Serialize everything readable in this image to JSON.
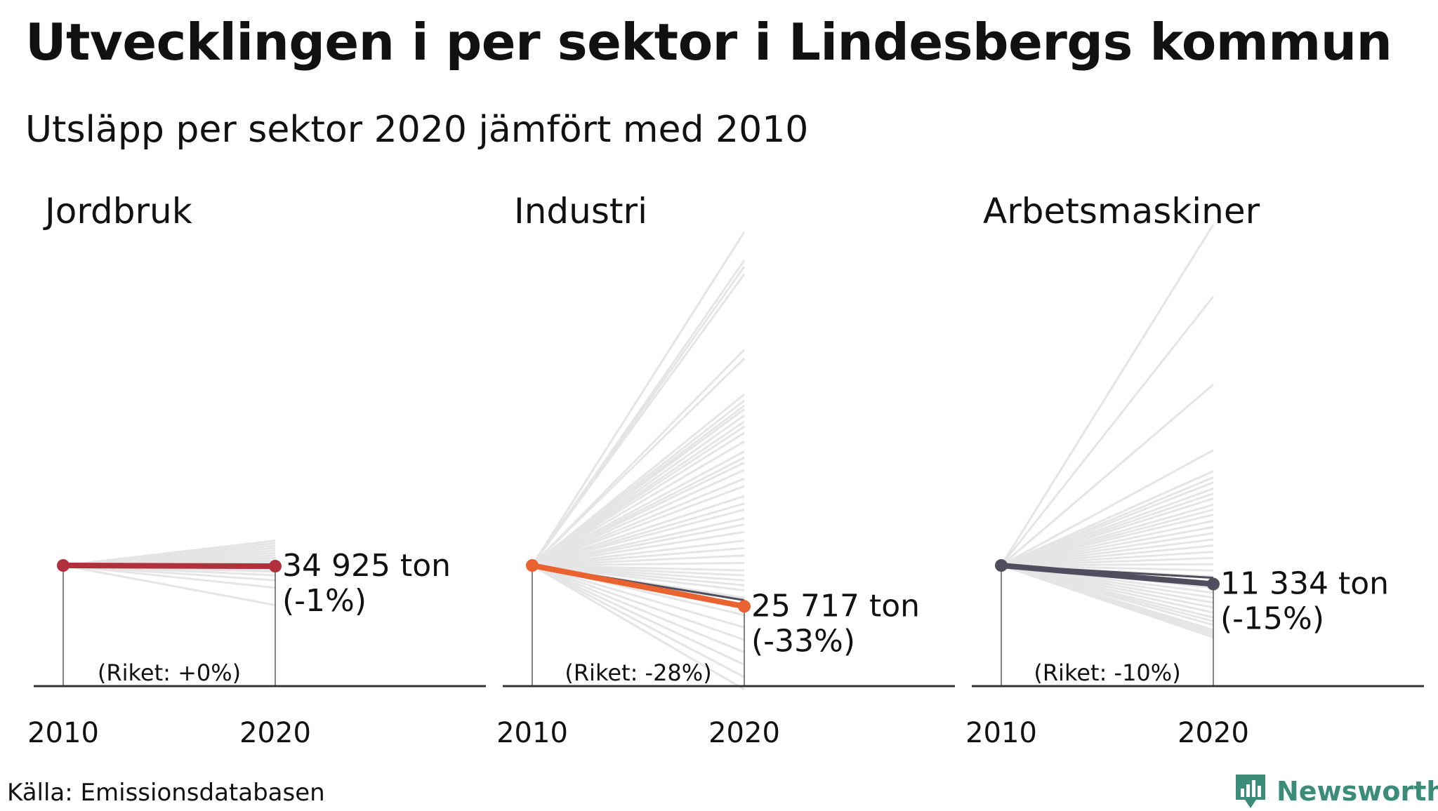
{
  "title": "Utvecklingen i per sektor i Lindesbergs kommun",
  "subtitle": "Utsläpp per sektor 2020 jämfört med 2010",
  "source": "Källa: Emissionsdatabasen",
  "brand": "Newsworthy",
  "colors": {
    "jordbruk": "#b0313c",
    "industri": "#e9622f",
    "arbetsmaskiner": "#4f4e5e",
    "national": "#4f4e5e",
    "background_lines": "#e5e5e5",
    "axis": "#333333",
    "brand": "#3c8c7a"
  },
  "chart_data": [
    {
      "type": "line",
      "title": "Jordbruk",
      "x": [
        "2010",
        "2020"
      ],
      "index_2010": 100,
      "municipality_2020_index": 99.4,
      "value_label": "34 925 ton",
      "change_label": "(-1%)",
      "national_label": "(Riket: +0%)",
      "national_2020_index": 100,
      "other_municipalities_2020_index": [
        120,
        118,
        116,
        114,
        112,
        110,
        108,
        106,
        104,
        103,
        102,
        101,
        99,
        97,
        95,
        92,
        88,
        82,
        68
      ]
    },
    {
      "type": "line",
      "title": "Industri",
      "x": [
        "2010",
        "2020"
      ],
      "index_2010": 100,
      "municipality_2020_index": 67,
      "value_label": "25 717 ton",
      "change_label": "(-33%)",
      "national_label": "(Riket: -28%)",
      "national_2020_index": 72,
      "other_municipalities_2020_index": [
        369,
        346,
        341,
        335,
        274,
        267,
        238,
        233,
        229,
        226,
        221,
        216,
        212,
        207,
        200,
        192,
        187,
        183,
        177,
        170,
        164,
        156,
        150,
        145,
        138,
        133,
        127,
        120,
        114,
        108,
        102,
        96,
        92,
        88,
        84,
        80,
        74,
        68,
        60,
        50,
        40,
        30,
        20,
        10,
        0
      ]
    },
    {
      "type": "line",
      "title": "Arbetsmaskiner",
      "x": [
        "2010",
        "2020"
      ],
      "index_2010": 100,
      "municipality_2020_index": 85,
      "value_label": "11 334 ton",
      "change_label": "(-15%)",
      "national_label": "(Riket: -10%)",
      "national_2020_index": 90,
      "other_municipalities_2020_index": [
        375,
        317,
        246,
        193,
        176,
        171,
        167,
        162,
        158,
        154,
        149,
        145,
        141,
        136,
        131,
        126,
        121,
        116,
        111,
        106,
        101,
        96,
        91,
        86,
        82,
        78,
        74,
        70,
        66,
        62,
        58,
        55,
        52,
        48,
        46,
        44,
        42
      ]
    }
  ]
}
